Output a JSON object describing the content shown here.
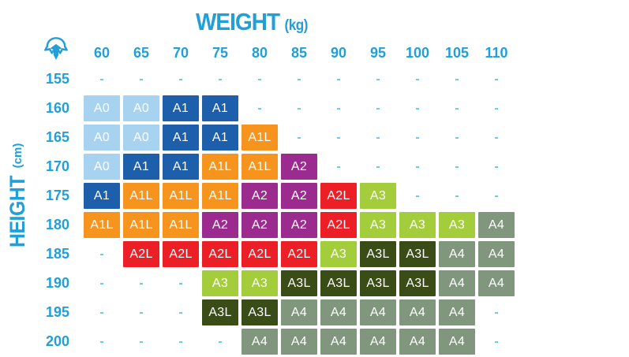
{
  "title": {
    "text": "WEIGHT",
    "unit": "(kg)"
  },
  "y_axis": {
    "text": "HEIGHT",
    "unit": "(cm)"
  },
  "accent_color": "#219FD9",
  "dash_color": "#63C9EA",
  "empty_marker": "-",
  "icons": {
    "corner": "helmet-icon"
  },
  "chart_data": {
    "type": "heatmap",
    "title": "WEIGHT (kg)",
    "xlabel": "WEIGHT (kg)",
    "ylabel": "HEIGHT (cm)",
    "x_categories_weights_kg": [
      60,
      65,
      70,
      75,
      80,
      85,
      90,
      95,
      100,
      105,
      110
    ],
    "y_categories_heights_cm": [
      155,
      160,
      165,
      170,
      175,
      180,
      185,
      190,
      195,
      200
    ],
    "sizes": [
      [
        "-",
        "-",
        "-",
        "-",
        "-",
        "-",
        "-",
        "-",
        "-",
        "-",
        "-"
      ],
      [
        "A0",
        "A0",
        "A1",
        "A1",
        "-",
        "-",
        "-",
        "-",
        "-",
        "-",
        "-"
      ],
      [
        "A0",
        "A0",
        "A1",
        "A1",
        "A1L",
        "-",
        "-",
        "-",
        "-",
        "-",
        "-"
      ],
      [
        "A0",
        "A1",
        "A1",
        "A1L",
        "A1L",
        "A2",
        "-",
        "-",
        "-",
        "-",
        "-"
      ],
      [
        "A1",
        "A1L",
        "A1L",
        "A1L",
        "A2",
        "A2",
        "A2L",
        "A3",
        "-",
        "-",
        "-"
      ],
      [
        "A1L",
        "A1L",
        "A1L",
        "A2",
        "A2",
        "A2",
        "A2L",
        "A3",
        "A3",
        "A3",
        "A4"
      ],
      [
        "-",
        "A2L",
        "A2L",
        "A2L",
        "A2L",
        "A2L",
        "A3",
        "A3L",
        "A3L",
        "A4",
        "A4"
      ],
      [
        "-",
        "-",
        "-",
        "A3",
        "A3",
        "A3L",
        "A3L",
        "A3L",
        "A3L",
        "A4",
        "A4"
      ],
      [
        "-",
        "-",
        "-",
        "A3L",
        "A3L",
        "A4",
        "A4",
        "A4",
        "A4",
        "A4",
        "-"
      ],
      [
        "-",
        "-",
        "-",
        "-",
        "A4",
        "A4",
        "A4",
        "A4",
        "A4",
        "A4",
        "-"
      ]
    ],
    "size_colors": {
      "A0": "#A8D3F0",
      "A1": "#1E5FAC",
      "A1L": "#F7941E",
      "A2": "#9C2B90",
      "A2L": "#EC1F27",
      "A3": "#A4CD3C",
      "A3L": "#3A4D16",
      "A4": "#80977D"
    },
    "legend_position": "none",
    "grid_lines": false
  }
}
